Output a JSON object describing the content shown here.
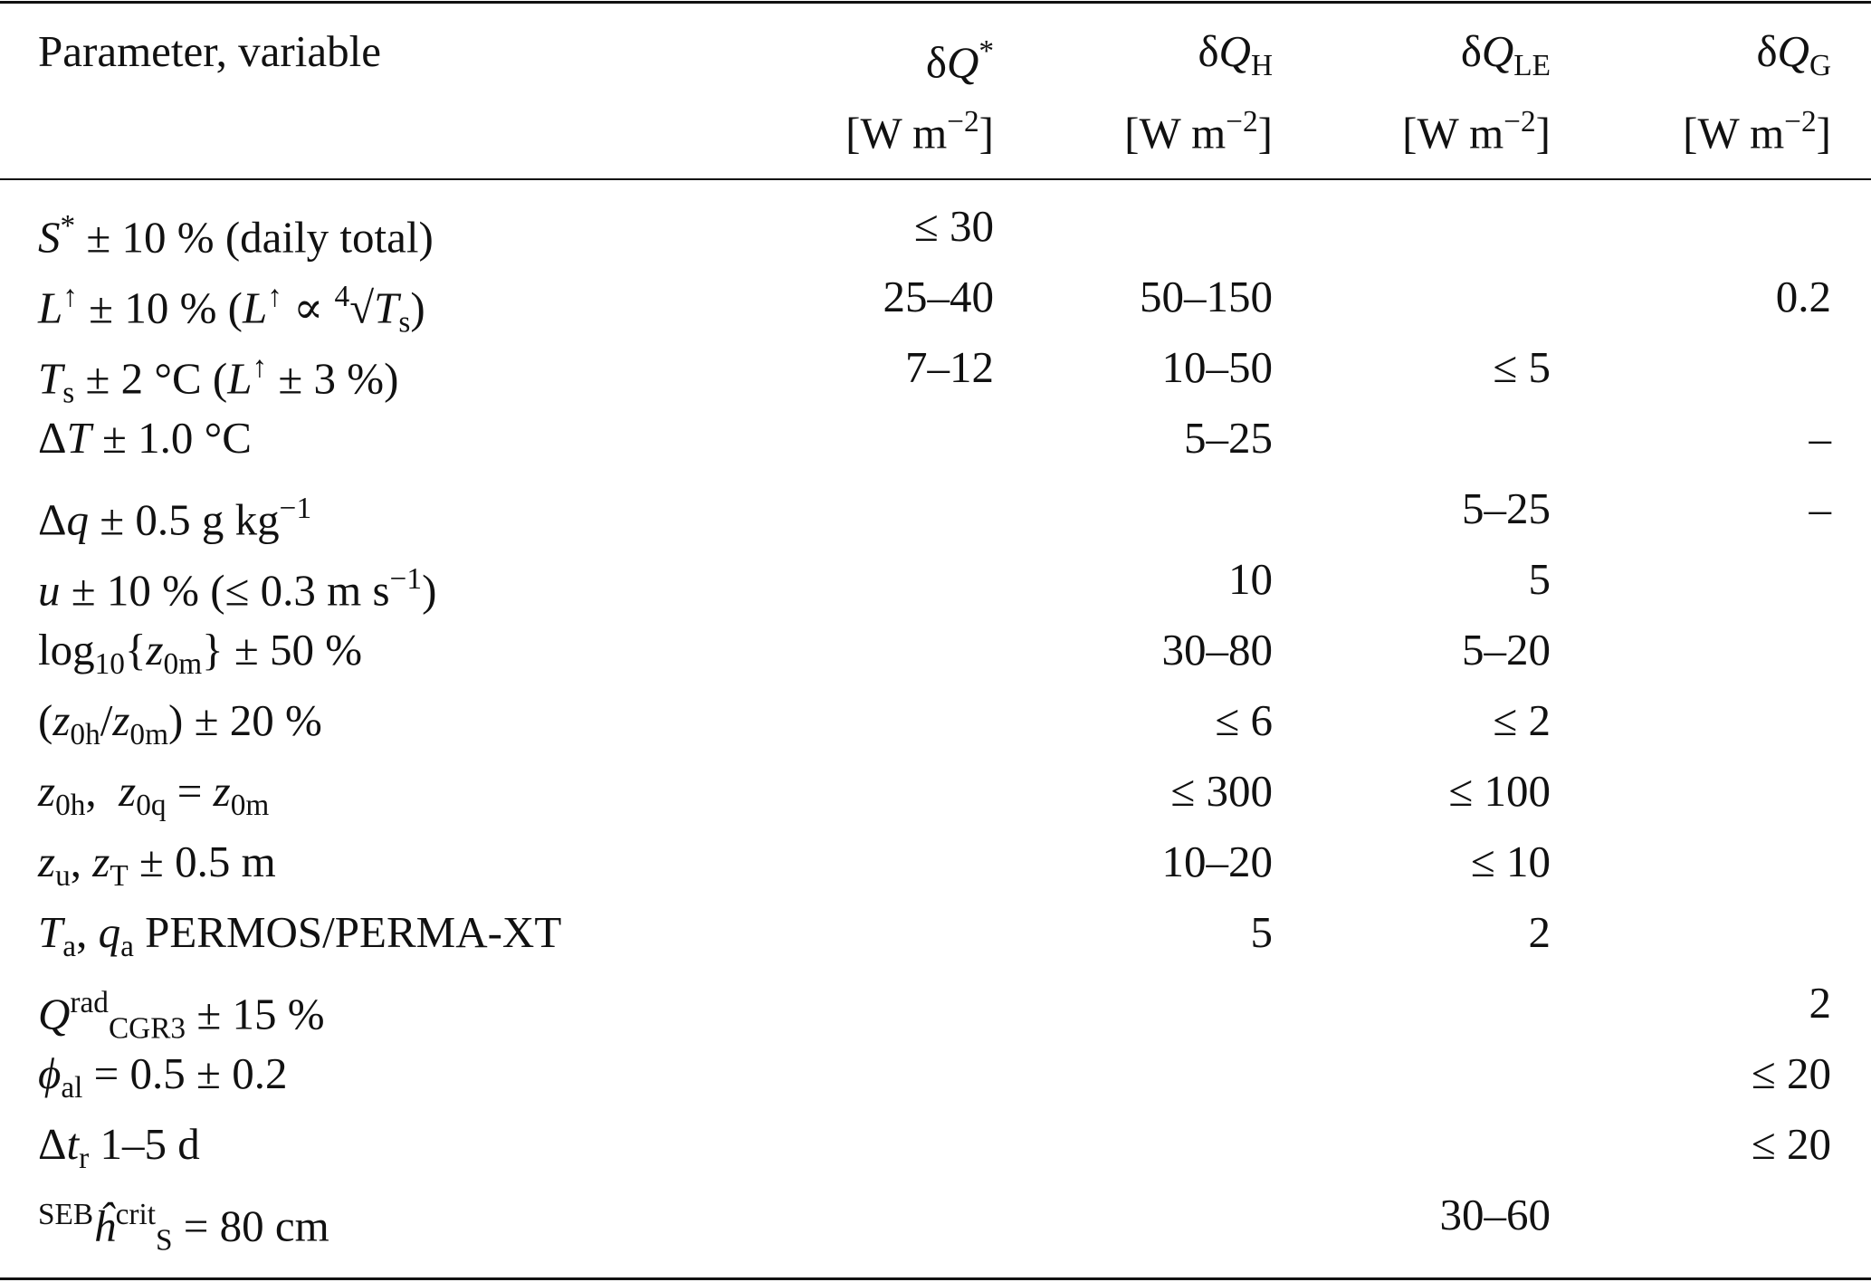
{
  "table": {
    "header": {
      "label": "Parameter, variable",
      "columns": [
        {
          "name": [
            [
              "δ",
              ""
            ],
            [
              "Q",
              "i"
            ],
            [
              "*",
              "sup"
            ]
          ],
          "unit": [
            [
              "[W m",
              ""
            ],
            [
              "−2",
              "sup"
            ],
            [
              "]",
              ""
            ]
          ]
        },
        {
          "name": [
            [
              "δ",
              ""
            ],
            [
              "Q",
              "i"
            ],
            [
              "H",
              "sub"
            ]
          ],
          "unit": [
            [
              "[W m",
              ""
            ],
            [
              "−2",
              "sup"
            ],
            [
              "]",
              ""
            ]
          ]
        },
        {
          "name": [
            [
              "δ",
              ""
            ],
            [
              "Q",
              "i"
            ],
            [
              "LE",
              "sub"
            ]
          ],
          "unit": [
            [
              "[W m",
              ""
            ],
            [
              "−2",
              "sup"
            ],
            [
              "]",
              ""
            ]
          ]
        },
        {
          "name": [
            [
              "δ",
              ""
            ],
            [
              "Q",
              "i"
            ],
            [
              "G",
              "sub"
            ]
          ],
          "unit": [
            [
              "[W m",
              ""
            ],
            [
              "−2",
              "sup"
            ],
            [
              "]",
              ""
            ]
          ]
        }
      ]
    },
    "rows": [
      {
        "label": [
          [
            "S",
            "i"
          ],
          [
            "*",
            "sup"
          ],
          [
            " ± 10 % (daily total)",
            ""
          ]
        ],
        "values": [
          "≤ 30",
          null,
          null,
          null
        ]
      },
      {
        "label": [
          [
            "L",
            "i"
          ],
          [
            "↑",
            "sup"
          ],
          [
            " ± 10 % (",
            ""
          ],
          [
            "L",
            "i"
          ],
          [
            "↑",
            "sup"
          ],
          [
            " ∝ ",
            ""
          ],
          [
            "4",
            "sup"
          ],
          [
            "√",
            ""
          ],
          [
            "T",
            "i"
          ],
          [
            "s",
            "sub"
          ],
          [
            ")",
            ""
          ]
        ],
        "values": [
          "25–40",
          "50–150",
          null,
          "0.2"
        ]
      },
      {
        "label": [
          [
            "T",
            "i"
          ],
          [
            "s",
            "sub"
          ],
          [
            " ± 2 °C (",
            ""
          ],
          [
            "L",
            "i"
          ],
          [
            "↑",
            "sup"
          ],
          [
            " ± 3 %)",
            ""
          ]
        ],
        "values": [
          "7–12",
          "10–50",
          "≤ 5",
          null
        ]
      },
      {
        "label": [
          [
            "Δ",
            ""
          ],
          [
            "T",
            "i"
          ],
          [
            " ± 1.0 °C",
            ""
          ]
        ],
        "values": [
          null,
          "5–25",
          null,
          "–"
        ]
      },
      {
        "label": [
          [
            "Δ",
            ""
          ],
          [
            "q",
            "i"
          ],
          [
            " ± 0.5 g kg",
            ""
          ],
          [
            "−1",
            "sup"
          ]
        ],
        "values": [
          null,
          null,
          "5–25",
          "–"
        ]
      },
      {
        "label": [
          [
            "u",
            "i"
          ],
          [
            " ± 10 % (≤ 0.3 m s",
            ""
          ],
          [
            "−1",
            "sup"
          ],
          [
            ")",
            ""
          ]
        ],
        "values": [
          null,
          "10",
          "5",
          null
        ]
      },
      {
        "label": [
          [
            "log",
            ""
          ],
          [
            "10",
            "sub"
          ],
          [
            "{",
            ""
          ],
          [
            "z",
            "i"
          ],
          [
            "0m",
            "sub"
          ],
          [
            "} ± 50 %",
            ""
          ]
        ],
        "values": [
          null,
          "30–80",
          "5–20",
          null
        ]
      },
      {
        "label": [
          [
            "(",
            ""
          ],
          [
            "z",
            "i"
          ],
          [
            "0h",
            "sub"
          ],
          [
            "/",
            ""
          ],
          [
            "z",
            "i"
          ],
          [
            "0m",
            "sub"
          ],
          [
            ") ± 20 %",
            ""
          ]
        ],
        "values": [
          null,
          "≤ 6",
          "≤ 2",
          null
        ]
      },
      {
        "label": [
          [
            "z",
            "i"
          ],
          [
            "0h",
            "sub"
          ],
          [
            ",  ",
            ""
          ],
          [
            "z",
            "i"
          ],
          [
            "0q",
            "sub"
          ],
          [
            " = ",
            ""
          ],
          [
            "z",
            "i"
          ],
          [
            "0m",
            "sub"
          ]
        ],
        "values": [
          null,
          "≤ 300",
          "≤ 100",
          null
        ]
      },
      {
        "label": [
          [
            "z",
            "i"
          ],
          [
            "u",
            "sub"
          ],
          [
            ", ",
            ""
          ],
          [
            "z",
            "i"
          ],
          [
            "T",
            "sub"
          ],
          [
            " ± 0.5 m",
            ""
          ]
        ],
        "values": [
          null,
          "10–20",
          "≤ 10",
          null
        ]
      },
      {
        "label": [
          [
            "T",
            "i"
          ],
          [
            "a",
            "sub"
          ],
          [
            ", ",
            ""
          ],
          [
            "q",
            "i"
          ],
          [
            "a",
            "sub"
          ],
          [
            " PERMOS/PERMA-XT",
            ""
          ]
        ],
        "values": [
          null,
          "5",
          "2",
          null
        ]
      },
      {
        "label": [
          [
            "Q",
            "i"
          ],
          [
            "rad",
            "sup"
          ],
          [
            "CGR3",
            "sub"
          ],
          [
            " ± 15 %",
            ""
          ]
        ],
        "values": [
          null,
          null,
          null,
          "2"
        ]
      },
      {
        "label": [
          [
            "ϕ",
            "i"
          ],
          [
            "al",
            "sub"
          ],
          [
            " = 0.5 ± 0.2",
            ""
          ]
        ],
        "values": [
          null,
          null,
          null,
          "≤ 20"
        ]
      },
      {
        "label": [
          [
            "Δ",
            ""
          ],
          [
            "t",
            "i"
          ],
          [
            "r",
            "sub"
          ],
          [
            " 1–5 d",
            ""
          ]
        ],
        "values": [
          null,
          null,
          null,
          "≤ 20"
        ]
      },
      {
        "label": [
          [
            "SEB",
            "sup"
          ],
          [
            "ĥ",
            "i"
          ],
          [
            "crit",
            "sup"
          ],
          [
            "S",
            "sub"
          ],
          [
            " = 80 cm",
            ""
          ]
        ],
        "values": [
          null,
          null,
          "30–60",
          null
        ]
      }
    ]
  }
}
